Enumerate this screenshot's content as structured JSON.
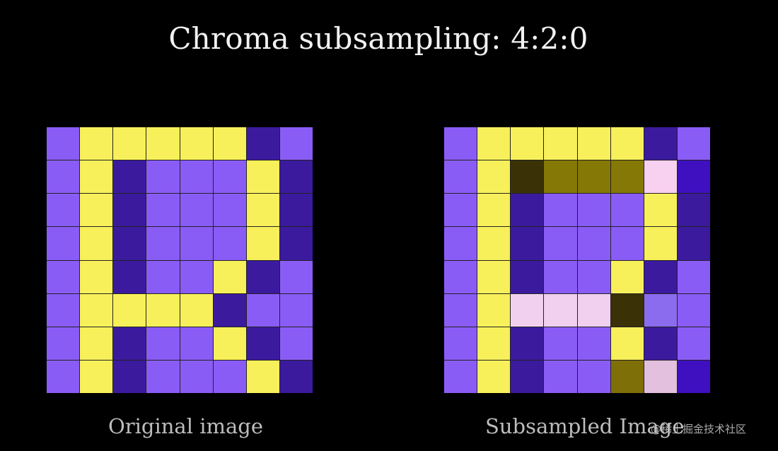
{
  "title": "Chroma subsampling: 4:2:0",
  "captions": {
    "original": "Original image",
    "subsampled": "Subsampled Image"
  },
  "watermark": "@稀土掘金技术社区",
  "palette": {
    "P": "#8a5cf6",
    "Y": "#f8f05a",
    "D": "#3b1a9e",
    "Db": "#3f10c0",
    "K": "#3a3206",
    "O": "#857806",
    "Pk": "#f8d0f0",
    "Pl": "#f0d0ee",
    "L": "#8b6cee",
    "Yd": "#7f6f08",
    "Pm": "#e2c0de"
  },
  "original_grid": [
    [
      "P",
      "Y",
      "Y",
      "Y",
      "Y",
      "Y",
      "D",
      "P"
    ],
    [
      "P",
      "Y",
      "D",
      "P",
      "P",
      "P",
      "Y",
      "D"
    ],
    [
      "P",
      "Y",
      "D",
      "P",
      "P",
      "P",
      "Y",
      "D"
    ],
    [
      "P",
      "Y",
      "D",
      "P",
      "P",
      "P",
      "Y",
      "D"
    ],
    [
      "P",
      "Y",
      "D",
      "P",
      "P",
      "Y",
      "D",
      "P"
    ],
    [
      "P",
      "Y",
      "Y",
      "Y",
      "Y",
      "D",
      "P",
      "P"
    ],
    [
      "P",
      "Y",
      "D",
      "P",
      "P",
      "Y",
      "D",
      "P"
    ],
    [
      "P",
      "Y",
      "D",
      "P",
      "P",
      "P",
      "Y",
      "D"
    ]
  ],
  "subsampled_grid": [
    [
      "P",
      "Y",
      "Y",
      "Y",
      "Y",
      "Y",
      "D",
      "P"
    ],
    [
      "P",
      "Y",
      "K",
      "O",
      "O",
      "O",
      "Pk",
      "Db"
    ],
    [
      "P",
      "Y",
      "D",
      "P",
      "P",
      "P",
      "Y",
      "D"
    ],
    [
      "P",
      "Y",
      "D",
      "P",
      "P",
      "P",
      "Y",
      "D"
    ],
    [
      "P",
      "Y",
      "D",
      "P",
      "P",
      "Y",
      "D",
      "P"
    ],
    [
      "P",
      "Y",
      "Pl",
      "Pl",
      "Pl",
      "K",
      "L",
      "P"
    ],
    [
      "P",
      "Y",
      "D",
      "P",
      "P",
      "Y",
      "D",
      "P"
    ],
    [
      "P",
      "Y",
      "D",
      "P",
      "P",
      "Yd",
      "Pm",
      "Db"
    ]
  ]
}
